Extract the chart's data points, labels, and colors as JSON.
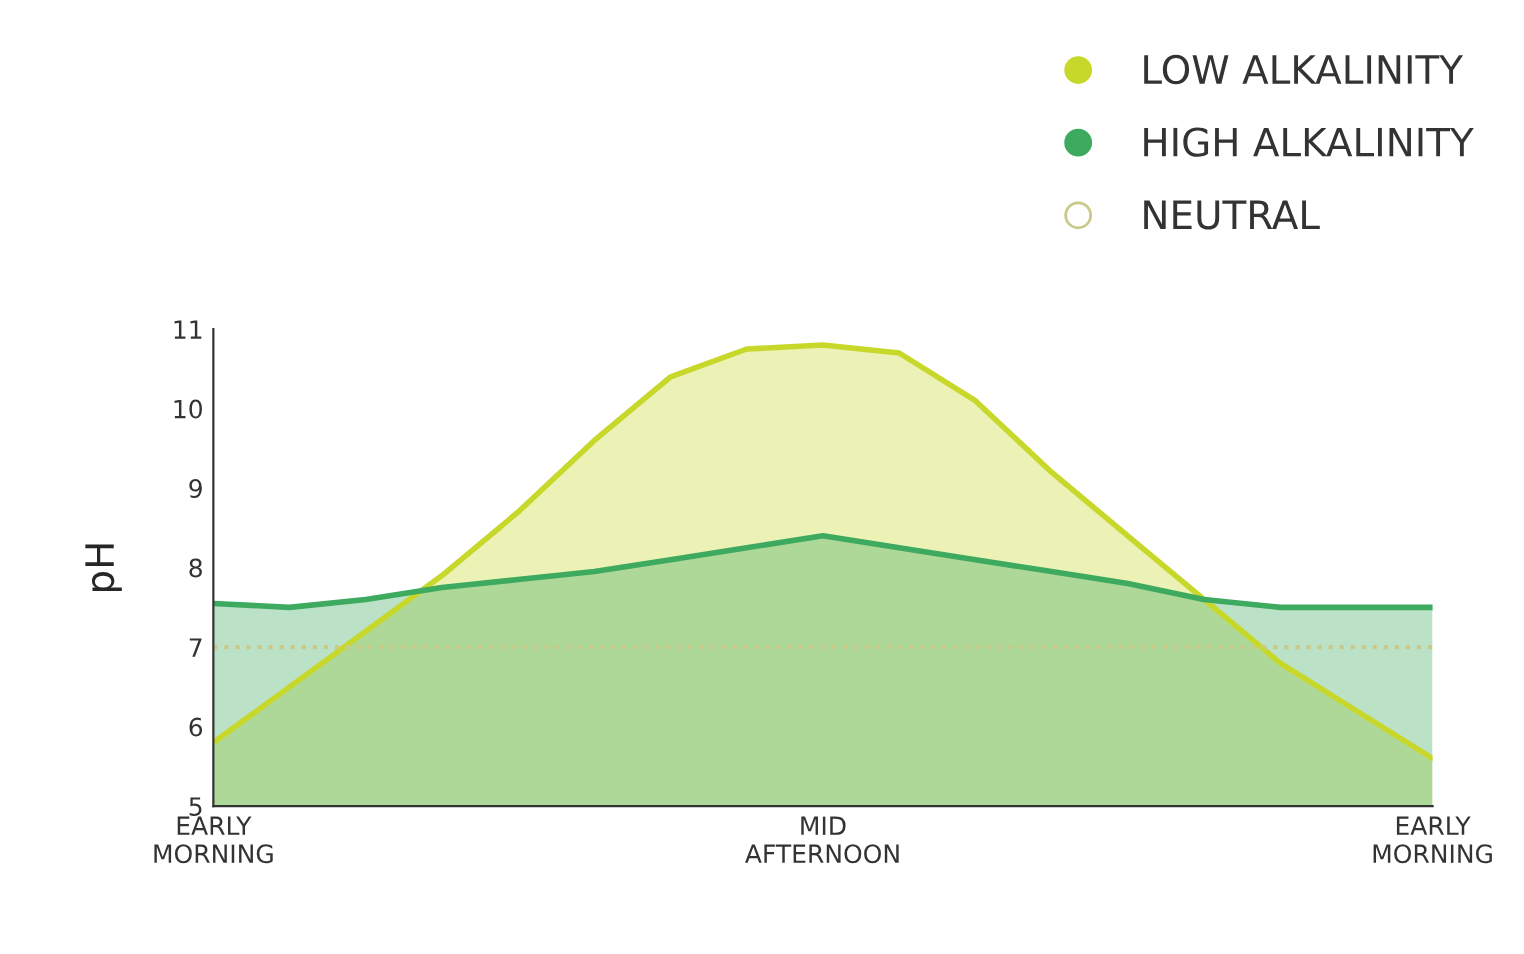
{
  "chart_data": {
    "type": "area",
    "ylabel": "pH",
    "categories": [
      "EARLY\nMORNING",
      null,
      null,
      null,
      null,
      null,
      null,
      null,
      "MID\nAFTERNOON",
      null,
      null,
      null,
      null,
      null,
      null,
      null,
      "EARLY\nMORNING"
    ],
    "ylim": [
      5,
      11
    ],
    "yticks": [
      5,
      6,
      7,
      8,
      9,
      10,
      11
    ],
    "series": [
      {
        "name": "LOW ALKALINITY",
        "color": "#c8d82a",
        "values": [
          5.8,
          6.5,
          7.2,
          7.9,
          8.7,
          9.6,
          10.4,
          10.75,
          10.8,
          10.7,
          10.1,
          9.2,
          8.4,
          7.6,
          6.8,
          6.2,
          5.6
        ]
      },
      {
        "name": "HIGH ALKALINITY",
        "color": "#3daa5f",
        "values": [
          7.55,
          7.5,
          7.6,
          7.75,
          7.85,
          7.95,
          8.1,
          8.25,
          8.4,
          8.25,
          8.1,
          7.95,
          7.8,
          7.6,
          7.5,
          7.5,
          7.5
        ]
      }
    ],
    "ref_lines": [
      {
        "axis": "y",
        "value": 7,
        "label": "NEUTRAL",
        "color": "#c9c98a",
        "line_style": "dotted"
      }
    ],
    "grid": false,
    "legend": "top right",
    "marker": "none",
    "line_style": "solid"
  }
}
